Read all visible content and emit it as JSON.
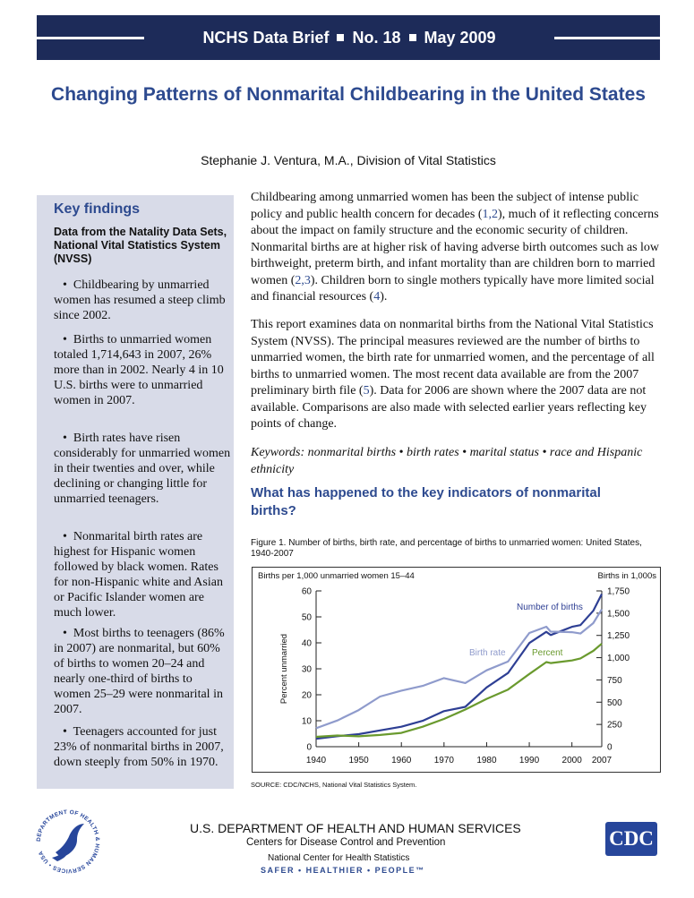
{
  "banner": {
    "series": "NCHS Data Brief",
    "number": "No. 18",
    "date": "May 2009"
  },
  "title": "Changing Patterns of Nonmarital Childbearing in the United States",
  "author": "Stephanie J. Ventura, M.A., Division of Vital Statistics",
  "sidebar": {
    "heading": "Key findings",
    "subheading": "Data from the Natality Data Sets, National Vital Statistics System (NVSS)",
    "findings": [
      "Childbearing by unmarried women has resumed a steep climb since 2002.",
      "Births to unmarried women totaled 1,714,643 in 2007, 26% more than in 2002. Nearly 4 in 10 U.S. births were to unmarried women in 2007.",
      "Birth rates have risen considerably for unmarried women in their twenties and over, while declining or changing little for unmarried teenagers.",
      "Nonmarital birth rates are highest for Hispanic women followed by black women. Rates for non-Hispanic white and Asian or Pacific Islander women are much lower.",
      "Most births to teenagers (86% in 2007) are nonmarital, but 60% of births to women 20–24 and nearly one-third of births to women 25–29 were nonmarital in 2007.",
      "Teenagers accounted for just 23% of nonmarital births in 2007, down steeply from 50% in 1970."
    ]
  },
  "body": {
    "p1_a": "Childbearing among unmarried women has been the subject of intense public policy and public health concern for decades (",
    "p1_ref1": "1,2",
    "p1_b": "), much of it reflecting concerns about the impact on family structure and the economic security of children. Nonmarital births are at higher risk of having adverse birth outcomes such as low birthweight, preterm birth, and infant mortality than are children born to married women (",
    "p1_ref2": "2,3",
    "p1_c": "). Children born to single mothers typically have more limited social and financial resources (",
    "p1_ref3": "4",
    "p1_d": ").",
    "p2_a": "This report examines data on nonmarital births from the National Vital Statistics System (NVSS). The principal measures reviewed are the number of births to unmarried women, the birth rate for unmarried women, and the percentage of all births to unmarried women. The most recent data available are from the 2007 preliminary birth file (",
    "p2_ref": "5",
    "p2_b": "). Data for 2006 are shown where the 2007 data are not available. Comparisons are also made with selected earlier years reflecting key points of change.",
    "keywords": "Keywords: nonmarital births • birth rates • marital status • race and Hispanic ethnicity",
    "subhead": "What has happened to the key indicators of nonmarital births?"
  },
  "figure": {
    "caption": "Figure 1.  Number of births, birth rate, and percentage of births to unmarried women: United States, 1940-2007",
    "source": "SOURCE: CDC/NCHS, National Vital Statistics System."
  },
  "chart_data": {
    "type": "line",
    "left_axis_title": "Births per 1,000 unmarried women 15–44",
    "right_axis_title": "Births in 1,000s",
    "ylabel": "Percent unmarried",
    "xlim": [
      1940,
      2007
    ],
    "ylim_left": [
      0,
      60
    ],
    "ylim_right": [
      0,
      1750
    ],
    "x_ticks": [
      "1940",
      "1950",
      "1960",
      "1970",
      "1980",
      "1990",
      "2000",
      "2007"
    ],
    "y_ticks_left": [
      "0",
      "10",
      "20",
      "30",
      "40",
      "50",
      "60"
    ],
    "y_ticks_right": [
      "0",
      "250",
      "500",
      "750",
      "1,000",
      "1,250",
      "1,500",
      "1,750"
    ],
    "series": [
      {
        "name": "Number of births",
        "axis": "right",
        "color": "#2e3f94",
        "x": [
          1940,
          1945,
          1950,
          1955,
          1960,
          1965,
          1970,
          1975,
          1980,
          1985,
          1990,
          1994,
          1995,
          2000,
          2002,
          2005,
          2007
        ],
        "values": [
          90,
          118,
          141,
          183,
          224,
          291,
          399,
          448,
          666,
          828,
          1165,
          1290,
          1254,
          1347,
          1366,
          1527,
          1715
        ]
      },
      {
        "name": "Birth rate",
        "axis": "left",
        "color": "#8f9bcc",
        "x": [
          1940,
          1945,
          1950,
          1955,
          1960,
          1965,
          1970,
          1975,
          1980,
          1985,
          1990,
          1994,
          1995,
          2000,
          2002,
          2005,
          2007
        ],
        "values": [
          7.1,
          10.1,
          14.1,
          19.3,
          21.6,
          23.4,
          26.4,
          24.5,
          29.4,
          32.8,
          43.8,
          46.2,
          44.3,
          44.1,
          43.6,
          47.6,
          52.9
        ]
      },
      {
        "name": "Percent",
        "axis": "left",
        "color": "#6a9a2e",
        "x": [
          1940,
          1945,
          1950,
          1955,
          1960,
          1965,
          1970,
          1975,
          1980,
          1985,
          1990,
          1994,
          1995,
          2000,
          2002,
          2005,
          2007
        ],
        "values": [
          3.8,
          4.3,
          4.0,
          4.5,
          5.3,
          7.7,
          10.7,
          14.3,
          18.4,
          22.0,
          28.0,
          32.6,
          32.2,
          33.2,
          34.0,
          36.9,
          39.7
        ]
      }
    ]
  },
  "footer": {
    "department": "U.S. DEPARTMENT OF HEALTH AND HUMAN SERVICES",
    "agency": "Centers for Disease Control and Prevention",
    "center": "National Center for Health Statistics",
    "tagline": "SAFER • HEALTHIER • PEOPLE™",
    "cdc_logo": "CDC",
    "seal_text": "DEPARTMENT OF HEALTH & HUMAN SERVICES • USA"
  },
  "colors": {
    "banner": "#1d2b59",
    "accent": "#2d4a8f",
    "sidebar": "#d8dbe8"
  }
}
